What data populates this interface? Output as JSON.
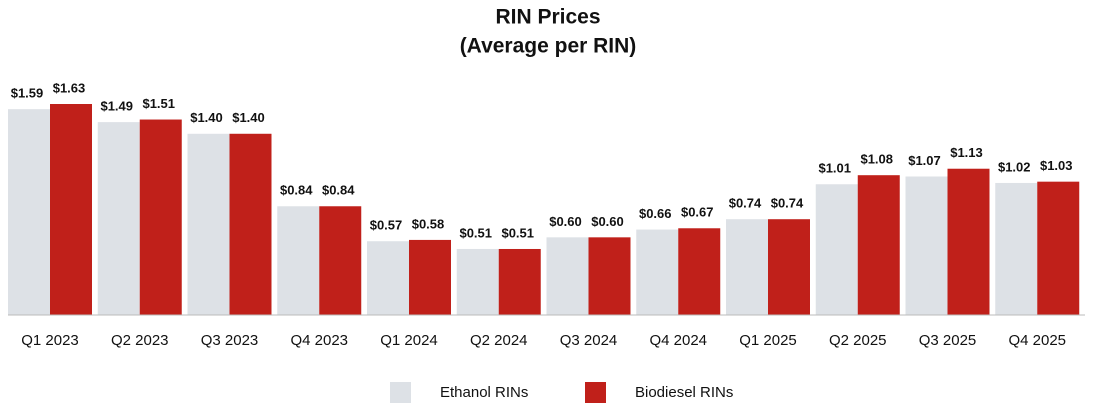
{
  "chart_data": {
    "type": "bar",
    "title": [
      "RIN Prices",
      "(Average per RIN)"
    ],
    "categories": [
      "Q1 2023",
      "Q2 2023",
      "Q3 2023",
      "Q4 2023",
      "Q1 2024",
      "Q2 2024",
      "Q3 2024",
      "Q4 2024",
      "Q1 2025",
      "Q2 2025",
      "Q3 2025",
      "Q4 2025"
    ],
    "series": [
      {
        "name": "Ethanol RINs",
        "color": "#dde1e6",
        "values": [
          1.59,
          1.49,
          1.4,
          0.84,
          0.57,
          0.51,
          0.6,
          0.66,
          0.74,
          1.01,
          1.07,
          1.02
        ],
        "value_labels": [
          "$1.59",
          "$1.49",
          "$1.40",
          "$0.84",
          "$0.57",
          "$0.51",
          "$0.60",
          "$0.66",
          "$0.74",
          "$1.01",
          "$1.07",
          "$1.02"
        ]
      },
      {
        "name": "Biodiesel RINs",
        "color": "#c0201a",
        "values": [
          1.63,
          1.51,
          1.4,
          0.84,
          0.58,
          0.51,
          0.6,
          0.67,
          0.74,
          1.08,
          1.13,
          1.03
        ],
        "value_labels": [
          "$1.63",
          "$1.51",
          "$1.40",
          "$0.84",
          "$0.58",
          "$0.51",
          "$0.60",
          "$0.67",
          "$0.74",
          "$1.08",
          "$1.13",
          "$1.03"
        ]
      }
    ],
    "legend": "bottom"
  }
}
